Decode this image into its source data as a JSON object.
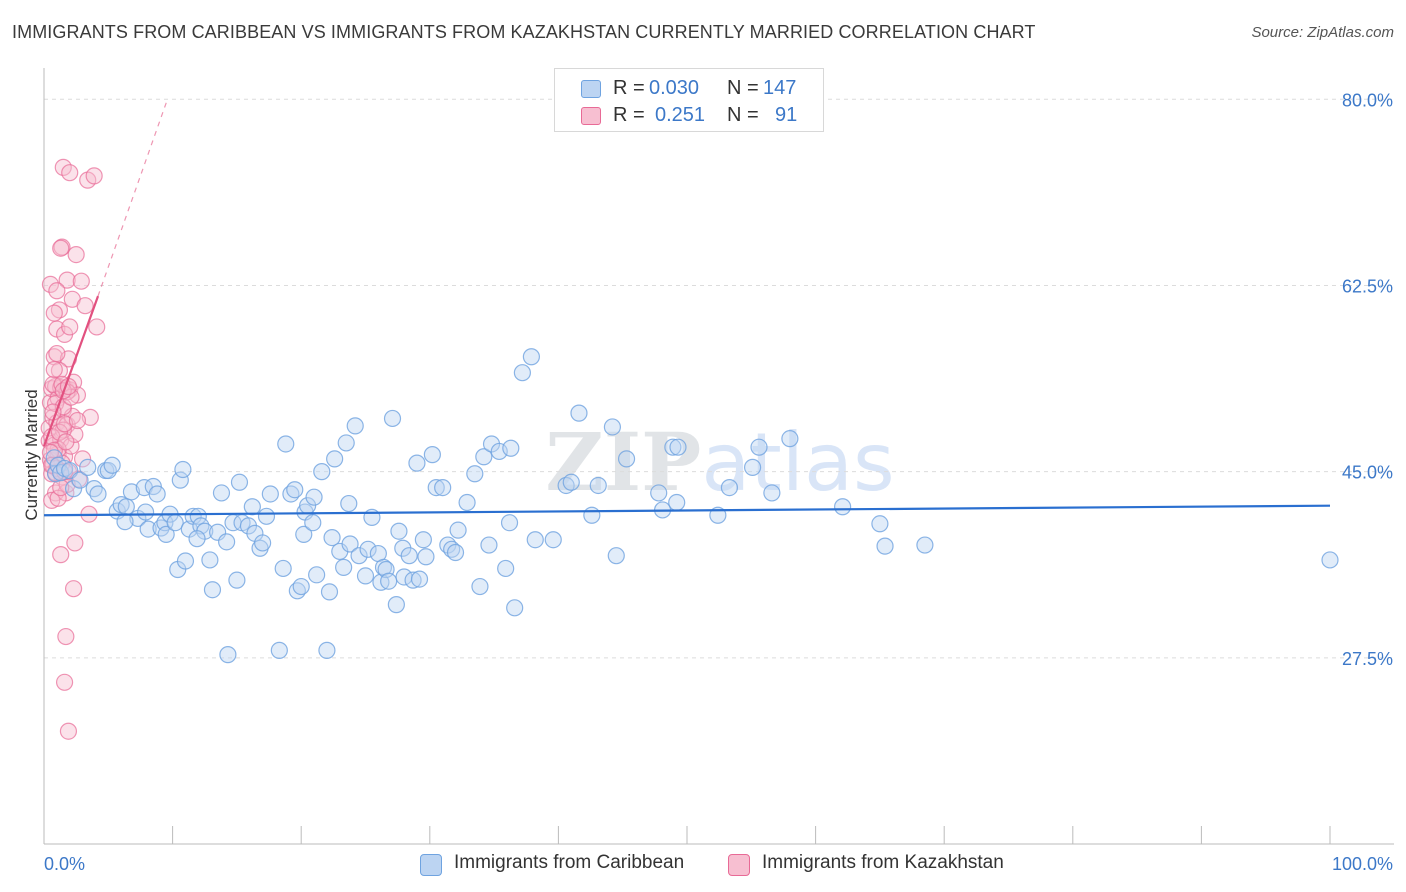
{
  "title": "IMMIGRANTS FROM CARIBBEAN VS IMMIGRANTS FROM KAZAKHSTAN CURRENTLY MARRIED CORRELATION CHART",
  "source": "Source: ZipAtlas.com",
  "watermark": "ZIPatlas",
  "stats": {
    "row1": {
      "r_label": "R =",
      "r_value": "0.030",
      "n_label": "N =",
      "n_value": "147"
    },
    "row2": {
      "r_label": "R =",
      "r_value": "0.251",
      "n_label": "N =",
      "n_value": "91"
    }
  },
  "legend": {
    "caribbean": "Immigrants from Caribbean",
    "kazakhstan": "Immigrants from Kazakhstan"
  },
  "colors": {
    "blue": "#6fa3e0",
    "blue_fill": "#bcd4f2",
    "blue_line": "#2a6fd0",
    "pink": "#e86a96",
    "pink_fill": "#f7bfd1",
    "pink_line": "#e2507f",
    "axis_text": "#3c78c8",
    "grid": "#dcdcdc"
  },
  "chart_data": {
    "type": "scatter",
    "title": "IMMIGRANTS FROM CARIBBEAN VS IMMIGRANTS FROM KAZAKHSTAN CURRENTLY MARRIED CORRELATION CHART",
    "xlabel": "",
    "ylabel": "Currently Married",
    "xlim": [
      0,
      100
    ],
    "ylim": [
      10,
      82
    ],
    "x_tick_labels": [
      "0.0%",
      "100.0%"
    ],
    "y_ticks": [
      27.5,
      45.0,
      62.5,
      80.0
    ],
    "y_tick_labels": [
      "27.5%",
      "45.0%",
      "62.5%",
      "80.0%"
    ],
    "grid": true,
    "legend_position": "bottom",
    "series": [
      {
        "name": "Immigrants from Caribbean",
        "color": "#6fa3e0",
        "trend": {
          "x": [
            0,
            100
          ],
          "y": [
            40.9,
            41.8
          ]
        },
        "points": [
          [
            0.8,
            46.3
          ],
          [
            0.9,
            44.8
          ],
          [
            1.1,
            45.6
          ],
          [
            1.3,
            44.9
          ],
          [
            1.6,
            45.3
          ],
          [
            2.0,
            45.1
          ],
          [
            2.3,
            43.4
          ],
          [
            2.8,
            44.2
          ],
          [
            3.4,
            45.4
          ],
          [
            3.9,
            43.4
          ],
          [
            4.2,
            42.9
          ],
          [
            4.8,
            45.1
          ],
          [
            5.0,
            45.1
          ],
          [
            5.3,
            45.6
          ],
          [
            5.7,
            41.3
          ],
          [
            6.0,
            41.9
          ],
          [
            6.4,
            41.7
          ],
          [
            6.8,
            43.1
          ],
          [
            7.3,
            40.6
          ],
          [
            7.8,
            43.5
          ],
          [
            7.9,
            41.2
          ],
          [
            8.1,
            39.6
          ],
          [
            8.5,
            43.6
          ],
          [
            8.8,
            42.9
          ],
          [
            9.1,
            39.7
          ],
          [
            9.4,
            40.2
          ],
          [
            9.5,
            39.1
          ],
          [
            9.8,
            41.0
          ],
          [
            10.2,
            40.2
          ],
          [
            10.4,
            35.8
          ],
          [
            10.6,
            44.2
          ],
          [
            10.8,
            45.2
          ],
          [
            11.0,
            36.6
          ],
          [
            11.3,
            39.6
          ],
          [
            11.6,
            40.8
          ],
          [
            12.0,
            40.8
          ],
          [
            12.2,
            39.9
          ],
          [
            12.5,
            39.4
          ],
          [
            12.9,
            36.7
          ],
          [
            13.1,
            33.9
          ],
          [
            13.5,
            39.3
          ],
          [
            13.8,
            43.0
          ],
          [
            14.2,
            38.4
          ],
          [
            14.3,
            27.8
          ],
          [
            14.7,
            40.2
          ],
          [
            15.0,
            34.8
          ],
          [
            15.4,
            40.2
          ],
          [
            15.9,
            39.9
          ],
          [
            16.2,
            41.7
          ],
          [
            16.4,
            39.2
          ],
          [
            16.8,
            37.8
          ],
          [
            17.0,
            38.3
          ],
          [
            17.3,
            40.8
          ],
          [
            17.6,
            42.9
          ],
          [
            18.3,
            28.2
          ],
          [
            18.6,
            35.9
          ],
          [
            18.8,
            47.6
          ],
          [
            19.2,
            42.9
          ],
          [
            19.5,
            43.3
          ],
          [
            19.7,
            33.8
          ],
          [
            20.0,
            34.2
          ],
          [
            20.2,
            39.1
          ],
          [
            20.3,
            41.2
          ],
          [
            20.5,
            41.8
          ],
          [
            20.9,
            40.2
          ],
          [
            21.2,
            35.3
          ],
          [
            21.6,
            45.0
          ],
          [
            22.0,
            28.2
          ],
          [
            22.2,
            33.7
          ],
          [
            22.4,
            38.8
          ],
          [
            22.6,
            46.2
          ],
          [
            23.0,
            37.5
          ],
          [
            23.3,
            36.0
          ],
          [
            23.5,
            47.7
          ],
          [
            23.7,
            42.0
          ],
          [
            23.8,
            38.2
          ],
          [
            24.2,
            49.3
          ],
          [
            24.5,
            37.1
          ],
          [
            25.0,
            35.2
          ],
          [
            25.2,
            37.7
          ],
          [
            25.5,
            40.7
          ],
          [
            26.0,
            37.3
          ],
          [
            26.2,
            34.6
          ],
          [
            26.4,
            36.0
          ],
          [
            26.6,
            35.8
          ],
          [
            26.8,
            34.7
          ],
          [
            27.1,
            50.0
          ],
          [
            27.4,
            32.5
          ],
          [
            27.6,
            39.4
          ],
          [
            27.9,
            37.8
          ],
          [
            28.0,
            35.1
          ],
          [
            28.4,
            37.1
          ],
          [
            28.7,
            34.8
          ],
          [
            29.2,
            34.9
          ],
          [
            29.5,
            38.6
          ],
          [
            29.7,
            37.0
          ],
          [
            30.2,
            46.6
          ],
          [
            30.5,
            43.5
          ],
          [
            31.0,
            43.5
          ],
          [
            31.4,
            38.1
          ],
          [
            31.7,
            37.7
          ],
          [
            32.0,
            37.4
          ],
          [
            32.2,
            39.5
          ],
          [
            32.9,
            42.1
          ],
          [
            33.5,
            44.8
          ],
          [
            33.9,
            34.2
          ],
          [
            34.2,
            46.4
          ],
          [
            34.6,
            38.1
          ],
          [
            34.8,
            47.6
          ],
          [
            35.4,
            46.9
          ],
          [
            35.9,
            35.9
          ],
          [
            36.2,
            40.2
          ],
          [
            36.6,
            32.2
          ],
          [
            37.2,
            54.3
          ],
          [
            37.9,
            55.8
          ],
          [
            38.2,
            38.6
          ],
          [
            39.6,
            38.6
          ],
          [
            40.6,
            43.7
          ],
          [
            41.6,
            50.5
          ],
          [
            42.6,
            40.9
          ],
          [
            43.1,
            43.7
          ],
          [
            44.2,
            49.2
          ],
          [
            44.5,
            37.1
          ],
          [
            45.3,
            46.2
          ],
          [
            47.8,
            43.0
          ],
          [
            48.1,
            41.4
          ],
          [
            48.9,
            47.3
          ],
          [
            49.2,
            42.1
          ],
          [
            49.3,
            47.3
          ],
          [
            52.4,
            40.9
          ],
          [
            53.3,
            43.5
          ],
          [
            55.1,
            45.4
          ],
          [
            55.6,
            47.3
          ],
          [
            56.6,
            43.0
          ],
          [
            58.0,
            48.1
          ],
          [
            62.1,
            41.7
          ],
          [
            65.0,
            40.1
          ],
          [
            65.4,
            38.0
          ],
          [
            68.5,
            38.1
          ],
          [
            100.0,
            36.7
          ],
          [
            6.3,
            40.3
          ],
          [
            11.9,
            38.7
          ],
          [
            29.0,
            45.8
          ],
          [
            36.3,
            47.2
          ],
          [
            15.2,
            44.0
          ],
          [
            21.0,
            42.6
          ],
          [
            41.0,
            44.0
          ]
        ]
      },
      {
        "name": "Immigrants from Kazakhstan",
        "color": "#e86a96",
        "trend": {
          "x": [
            0,
            4.2
          ],
          "y": [
            47.4,
            61.5
          ],
          "dash_x": [
            4.2,
            9.6
          ],
          "dash_y": [
            61.5,
            80.0
          ]
        },
        "points": [
          [
            0.4,
            47.9
          ],
          [
            0.4,
            49.1
          ],
          [
            0.5,
            46.1
          ],
          [
            0.5,
            51.5
          ],
          [
            0.6,
            44.8
          ],
          [
            0.6,
            52.8
          ],
          [
            0.7,
            50.1
          ],
          [
            0.7,
            45.6
          ],
          [
            0.8,
            47.5
          ],
          [
            0.8,
            55.8
          ],
          [
            0.9,
            53.0
          ],
          [
            0.9,
            43.0
          ],
          [
            1.0,
            49.6
          ],
          [
            1.0,
            58.4
          ],
          [
            1.1,
            46.7
          ],
          [
            1.1,
            51.9
          ],
          [
            1.2,
            45.1
          ],
          [
            1.2,
            60.2
          ],
          [
            1.3,
            52.9
          ],
          [
            1.3,
            48.0
          ],
          [
            1.4,
            66.1
          ],
          [
            1.4,
            44.5
          ],
          [
            1.5,
            73.6
          ],
          [
            1.5,
            50.8
          ],
          [
            1.6,
            57.9
          ],
          [
            1.6,
            46.4
          ],
          [
            1.7,
            52.8
          ],
          [
            1.7,
            43.0
          ],
          [
            1.8,
            63.0
          ],
          [
            1.8,
            49.4
          ],
          [
            1.9,
            55.6
          ],
          [
            1.9,
            45.0
          ],
          [
            2.0,
            58.6
          ],
          [
            2.0,
            52.7
          ],
          [
            2.1,
            47.4
          ],
          [
            2.2,
            61.2
          ],
          [
            2.2,
            50.2
          ],
          [
            2.3,
            53.4
          ],
          [
            2.4,
            48.5
          ],
          [
            2.5,
            65.4
          ],
          [
            2.6,
            52.2
          ],
          [
            2.7,
            44.3
          ],
          [
            2.9,
            62.9
          ],
          [
            3.0,
            46.2
          ],
          [
            3.2,
            60.6
          ],
          [
            3.4,
            72.4
          ],
          [
            3.5,
            41.0
          ],
          [
            3.6,
            50.1
          ],
          [
            3.9,
            72.8
          ],
          [
            4.1,
            58.6
          ],
          [
            0.5,
            62.6
          ],
          [
            0.6,
            42.3
          ],
          [
            0.8,
            59.9
          ],
          [
            1.0,
            56.1
          ],
          [
            1.2,
            54.5
          ],
          [
            1.3,
            37.2
          ],
          [
            1.5,
            48.9
          ],
          [
            1.6,
            25.2
          ],
          [
            1.7,
            29.5
          ],
          [
            1.9,
            20.6
          ],
          [
            1.8,
            43.8
          ],
          [
            2.0,
            73.1
          ],
          [
            2.3,
            34.0
          ],
          [
            2.4,
            38.3
          ],
          [
            1.4,
            45.8
          ],
          [
            1.1,
            47.1
          ],
          [
            0.9,
            51.4
          ],
          [
            0.7,
            53.2
          ],
          [
            1.5,
            51.1
          ],
          [
            1.8,
            52.5
          ],
          [
            0.6,
            48.3
          ],
          [
            0.8,
            47.0
          ],
          [
            1.0,
            45.3
          ],
          [
            1.2,
            48.7
          ],
          [
            1.4,
            53.2
          ],
          [
            1.6,
            49.5
          ],
          [
            2.1,
            52.0
          ],
          [
            0.5,
            46.8
          ],
          [
            1.3,
            66.0
          ],
          [
            1.7,
            47.8
          ],
          [
            0.9,
            44.9
          ],
          [
            1.1,
            42.5
          ],
          [
            0.7,
            50.6
          ],
          [
            1.5,
            52.6
          ],
          [
            0.6,
            45.6
          ],
          [
            2.6,
            49.8
          ],
          [
            1.9,
            53.0
          ],
          [
            1.0,
            62.0
          ],
          [
            0.8,
            54.6
          ],
          [
            1.3,
            43.5
          ],
          [
            1.6,
            45.0
          ]
        ]
      }
    ]
  }
}
